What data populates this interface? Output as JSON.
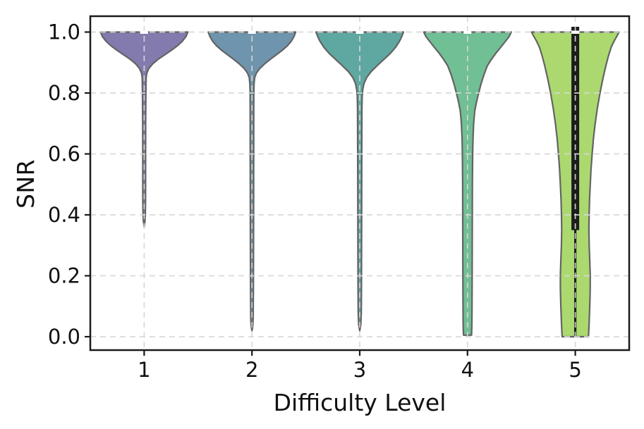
{
  "figure": {
    "background": "#ffffff"
  },
  "chart_data": {
    "type": "violin",
    "title": "",
    "xlabel": "Difficulty Level",
    "ylabel": "SNR",
    "categories": [
      "1",
      "2",
      "3",
      "4",
      "5"
    ],
    "xticks": [
      "1",
      "2",
      "3",
      "4",
      "5"
    ],
    "yticks": {
      "labels": [
        "1.0",
        "0.8",
        "0.6",
        "0.4",
        "0.2",
        "0.0"
      ],
      "values": [
        1.0,
        0.8,
        0.6,
        0.4,
        0.2,
        0.0
      ]
    },
    "ylim": [
      -0.045,
      1.052
    ],
    "grid": {
      "visible": true,
      "style": "dashed",
      "color": "#d7d7d7",
      "on_top": true
    },
    "styles": {
      "edge_color": "#636363",
      "edge_width": 2.2,
      "spine_color": "#1a1a1a",
      "box_color": "#1c1c1c",
      "median_color": "#ffffff",
      "text_color": "#111111"
    },
    "violins": [
      {
        "category": "1",
        "color": "#837BAE",
        "snr_max": 1.0,
        "snr_min": 0.36,
        "median": 1.0,
        "flat_bottom": false,
        "profile": [
          [
            1.0,
            1.0
          ],
          [
            0.985,
            0.955
          ],
          [
            0.97,
            0.875
          ],
          [
            0.955,
            0.76
          ],
          [
            0.94,
            0.62
          ],
          [
            0.925,
            0.47
          ],
          [
            0.91,
            0.315
          ],
          [
            0.895,
            0.19
          ],
          [
            0.88,
            0.105
          ],
          [
            0.865,
            0.06
          ],
          [
            0.85,
            0.045
          ],
          [
            0.8,
            0.038
          ],
          [
            0.7,
            0.034
          ],
          [
            0.6,
            0.032
          ],
          [
            0.5,
            0.032
          ],
          [
            0.44,
            0.03
          ],
          [
            0.4,
            0.026
          ],
          [
            0.38,
            0.018
          ],
          [
            0.36,
            0.0
          ]
        ]
      },
      {
        "category": "2",
        "color": "#6F94AD",
        "snr_max": 1.0,
        "snr_min": 0.02,
        "median": 1.0,
        "flat_bottom": false,
        "profile": [
          [
            1.0,
            1.0
          ],
          [
            0.985,
            0.96
          ],
          [
            0.97,
            0.9
          ],
          [
            0.955,
            0.81
          ],
          [
            0.94,
            0.69
          ],
          [
            0.925,
            0.555
          ],
          [
            0.91,
            0.415
          ],
          [
            0.895,
            0.285
          ],
          [
            0.88,
            0.175
          ],
          [
            0.865,
            0.1
          ],
          [
            0.85,
            0.062
          ],
          [
            0.83,
            0.048
          ],
          [
            0.8,
            0.042
          ],
          [
            0.7,
            0.04
          ],
          [
            0.5,
            0.038
          ],
          [
            0.3,
            0.036
          ],
          [
            0.15,
            0.033
          ],
          [
            0.06,
            0.028
          ],
          [
            0.035,
            0.018
          ],
          [
            0.02,
            0.0
          ]
        ]
      },
      {
        "category": "3",
        "color": "#5FA8A1",
        "snr_max": 1.0,
        "snr_min": 0.02,
        "median": 1.0,
        "flat_bottom": false,
        "profile": [
          [
            1.0,
            1.0
          ],
          [
            0.985,
            0.96
          ],
          [
            0.97,
            0.91
          ],
          [
            0.95,
            0.82
          ],
          [
            0.93,
            0.7
          ],
          [
            0.91,
            0.55
          ],
          [
            0.89,
            0.4
          ],
          [
            0.87,
            0.26
          ],
          [
            0.85,
            0.155
          ],
          [
            0.83,
            0.095
          ],
          [
            0.81,
            0.068
          ],
          [
            0.79,
            0.056
          ],
          [
            0.75,
            0.05
          ],
          [
            0.6,
            0.047
          ],
          [
            0.4,
            0.044
          ],
          [
            0.2,
            0.041
          ],
          [
            0.08,
            0.036
          ],
          [
            0.04,
            0.024
          ],
          [
            0.02,
            0.0
          ]
        ]
      },
      {
        "category": "4",
        "color": "#71BF94",
        "snr_max": 1.0,
        "snr_min": 0.0,
        "median": 1.0,
        "flat_bottom": true,
        "profile": [
          [
            1.0,
            1.0
          ],
          [
            0.985,
            0.95
          ],
          [
            0.97,
            0.87
          ],
          [
            0.95,
            0.76
          ],
          [
            0.93,
            0.645
          ],
          [
            0.91,
            0.545
          ],
          [
            0.89,
            0.455
          ],
          [
            0.86,
            0.375
          ],
          [
            0.83,
            0.31
          ],
          [
            0.8,
            0.255
          ],
          [
            0.77,
            0.205
          ],
          [
            0.74,
            0.165
          ],
          [
            0.7,
            0.14
          ],
          [
            0.65,
            0.125
          ],
          [
            0.6,
            0.118
          ],
          [
            0.5,
            0.112
          ],
          [
            0.4,
            0.11
          ],
          [
            0.3,
            0.108
          ],
          [
            0.2,
            0.106
          ],
          [
            0.1,
            0.103
          ],
          [
            0.04,
            0.1
          ],
          [
            0.005,
            0.092
          ]
        ]
      },
      {
        "category": "5",
        "color": "#ABD96F",
        "snr_max": 1.0,
        "snr_min": 0.0,
        "median": 1.0,
        "flat_bottom": true,
        "box": {
          "q1": 0.35,
          "q3": 1.0,
          "whisker_low": 0.0,
          "whisker_high": 1.0,
          "median": 1.0
        },
        "profile": [
          [
            1.0,
            1.0
          ],
          [
            0.985,
            0.945
          ],
          [
            0.97,
            0.885
          ],
          [
            0.95,
            0.82
          ],
          [
            0.92,
            0.755
          ],
          [
            0.89,
            0.7
          ],
          [
            0.85,
            0.635
          ],
          [
            0.8,
            0.565
          ],
          [
            0.75,
            0.505
          ],
          [
            0.7,
            0.455
          ],
          [
            0.65,
            0.415
          ],
          [
            0.6,
            0.385
          ],
          [
            0.55,
            0.36
          ],
          [
            0.5,
            0.342
          ],
          [
            0.45,
            0.326
          ],
          [
            0.4,
            0.316
          ],
          [
            0.35,
            0.312
          ],
          [
            0.3,
            0.318
          ],
          [
            0.25,
            0.33
          ],
          [
            0.2,
            0.342
          ],
          [
            0.15,
            0.34
          ],
          [
            0.1,
            0.33
          ],
          [
            0.05,
            0.318
          ],
          [
            0.0,
            0.302
          ]
        ]
      }
    ]
  }
}
